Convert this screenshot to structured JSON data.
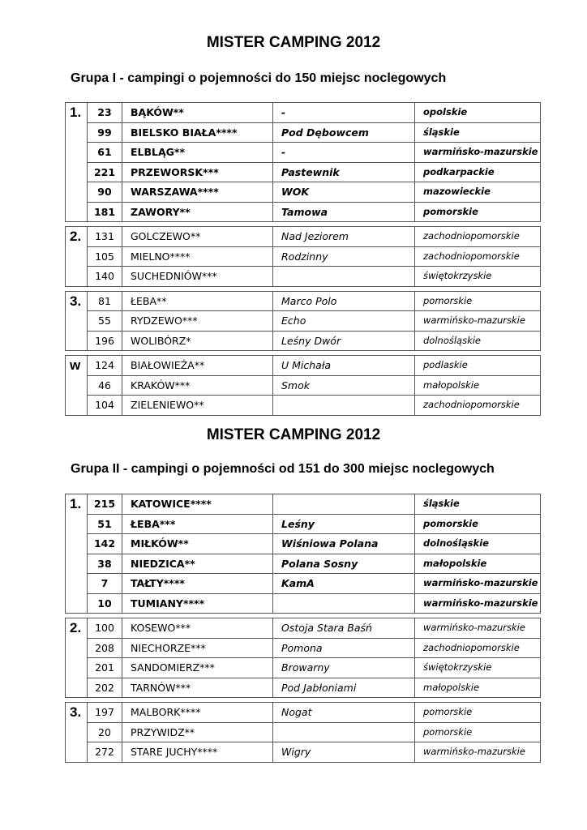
{
  "sections": [
    {
      "title": "MISTER CAMPING 2012",
      "subtitle": "Grupa I - campingi o pojemności do 150 miejsc noclegowych",
      "blocks": [
        {
          "rank": "1.",
          "rows": [
            {
              "num": "23",
              "name": "BĄKÓW**",
              "camp": "-",
              "region": "opolskie"
            },
            {
              "num": "99",
              "name": "BIELSKO BIAŁA****",
              "camp": "Pod Dębowcem",
              "region": "śląskie"
            },
            {
              "num": "61",
              "name": "ELBLĄG**",
              "camp": "-",
              "region": "warmińsko-mazurskie"
            },
            {
              "num": "221",
              "name": "PRZEWORSK***",
              "camp": "Pastewnik",
              "region": "podkarpackie"
            },
            {
              "num": "90",
              "name": "WARSZAWA****",
              "camp": "WOK",
              "region": "mazowieckie"
            },
            {
              "num": "181",
              "name": "ZAWORY**",
              "camp": "Tamowa",
              "region": "pomorskie"
            }
          ]
        },
        {
          "rank": "2.",
          "rows": [
            {
              "num": "131",
              "name": "GOLCZEWO**",
              "camp": "Nad Jeziorem",
              "region": "zachodniopomorskie"
            },
            {
              "num": "105",
              "name": "MIELNO****",
              "camp": "Rodzinny",
              "region": "zachodniopomorskie"
            },
            {
              "num": "140",
              "name": "SUCHEDNIÓW***",
              "camp": "",
              "region": "świętokrzyskie"
            }
          ]
        },
        {
          "rank": "3.",
          "rows": [
            {
              "num": "81",
              "name": "ŁEBA**",
              "camp": "Marco Polo",
              "region": "pomorskie"
            },
            {
              "num": "55",
              "name": "RYDZEWO***",
              "camp": "Echo",
              "region": "warmińsko-mazurskie"
            },
            {
              "num": "196",
              "name": "WOLIBÓRZ*",
              "camp": "Leśny Dwór",
              "region": "dolnośląskie"
            }
          ]
        },
        {
          "rank": "w",
          "rows": [
            {
              "num": "124",
              "name": "BIAŁOWIEŻA**",
              "camp": "U Michała",
              "region": "podlaskie"
            },
            {
              "num": "46",
              "name": "KRAKÓW***",
              "camp": "Smok",
              "region": "małopolskie"
            },
            {
              "num": "104",
              "name": "ZIELENIEWO**",
              "camp": "",
              "region": "zachodniopomorskie"
            }
          ]
        }
      ]
    },
    {
      "title": "MISTER CAMPING 2012",
      "subtitle": "Grupa II - campingi o pojemności  od 151 do 300 miejsc noclegowych",
      "blocks": [
        {
          "rank": "1.",
          "rows": [
            {
              "num": "215",
              "name": "KATOWICE****",
              "camp": "",
              "region": "śląskie"
            },
            {
              "num": "51",
              "name": "ŁEBA***",
              "camp": "Leśny",
              "region": "pomorskie"
            },
            {
              "num": "142",
              "name": "MIŁKÓW**",
              "camp": "Wiśniowa Polana",
              "region": "dolnośląskie"
            },
            {
              "num": "38",
              "name": "NIEDZICA**",
              "camp": "Polana Sosny",
              "region": "małopolskie"
            },
            {
              "num": "7",
              "name": "TAŁTY****",
              "camp": "KamA",
              "region": "warmińsko-mazurskie"
            },
            {
              "num": "10",
              "name": "TUMIANY****",
              "camp": "",
              "region": "warmińsko-mazurskie"
            }
          ]
        },
        {
          "rank": "2.",
          "rows": [
            {
              "num": "100",
              "name": "KOSEWO***",
              "camp": "Ostoja Stara Baśń",
              "region": "warmińsko-mazurskie"
            },
            {
              "num": "208",
              "name": "NIECHORZE***",
              "camp": "Pomona",
              "region": "zachodniopomorskie"
            },
            {
              "num": "201",
              "name": "SANDOMIERZ***",
              "camp": "Browarny",
              "region": "świętokrzyskie"
            },
            {
              "num": "202",
              "name": "TARNÓW***",
              "camp": "Pod Jabłoniami",
              "region": "małopolskie"
            }
          ]
        },
        {
          "rank": "3.",
          "rows": [
            {
              "num": "197",
              "name": "MALBORK****",
              "camp": "Nogat",
              "region": "pomorskie"
            },
            {
              "num": "20",
              "name": "PRZYWIDZ**",
              "camp": "",
              "region": "pomorskie"
            },
            {
              "num": "272",
              "name": "STARE JUCHY****",
              "camp": "Wigry",
              "region": "warmińsko-mazurskie"
            }
          ]
        }
      ]
    }
  ]
}
